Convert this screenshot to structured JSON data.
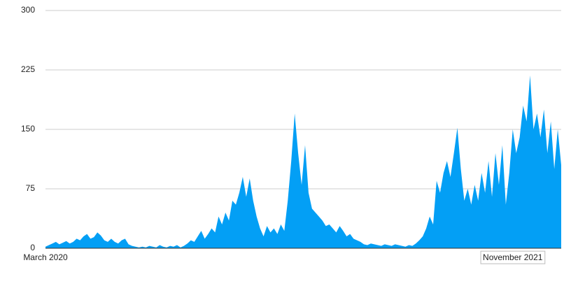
{
  "chart_data": {
    "type": "area",
    "color": "#039ff5",
    "grid": true,
    "ylim": [
      0,
      300
    ],
    "yticks": [
      0,
      75,
      150,
      225,
      300
    ],
    "categories": [
      "March 2020",
      null,
      null,
      null,
      null,
      null,
      null,
      null,
      null,
      null,
      null,
      null,
      null,
      null,
      null,
      null,
      null,
      null,
      null,
      null,
      null,
      null,
      null,
      null,
      null,
      null,
      null,
      null,
      null,
      null,
      null,
      null,
      null,
      null,
      null,
      null,
      null,
      null,
      null,
      null,
      null,
      null,
      null,
      null,
      null,
      null,
      null,
      null,
      null,
      null,
      null,
      null,
      null,
      null,
      null,
      null,
      null,
      null,
      null,
      null,
      null,
      null,
      null,
      null,
      null,
      null,
      null,
      null,
      null,
      null,
      null,
      null,
      null,
      null,
      null,
      null,
      null,
      null,
      null,
      null,
      null,
      null,
      null,
      null,
      null,
      null,
      null,
      null,
      null,
      null,
      null,
      null,
      null,
      null,
      null,
      null,
      null,
      null,
      null,
      null,
      null,
      null,
      null,
      null,
      null,
      null,
      null,
      null,
      null,
      null,
      null,
      null,
      null,
      null,
      null,
      null,
      null,
      null,
      null,
      null,
      null,
      null,
      null,
      null,
      null,
      null,
      null,
      null,
      null,
      null,
      null,
      null,
      null,
      null,
      null,
      "November 2021",
      null,
      null,
      null,
      null,
      null,
      null,
      null,
      null,
      null,
      null,
      null,
      null,
      null,
      null
    ],
    "values": [
      2,
      4,
      6,
      8,
      5,
      7,
      9,
      6,
      8,
      12,
      10,
      15,
      18,
      12,
      14,
      20,
      16,
      10,
      8,
      12,
      8,
      6,
      10,
      12,
      5,
      3,
      2,
      1,
      2,
      1,
      3,
      2,
      1,
      4,
      2,
      1,
      3,
      2,
      4,
      1,
      3,
      6,
      10,
      8,
      15,
      22,
      12,
      18,
      25,
      20,
      40,
      30,
      45,
      35,
      60,
      55,
      70,
      90,
      65,
      88,
      60,
      40,
      25,
      15,
      28,
      20,
      25,
      18,
      30,
      22,
      60,
      110,
      170,
      120,
      80,
      130,
      70,
      50,
      45,
      40,
      35,
      28,
      30,
      25,
      20,
      28,
      22,
      15,
      18,
      12,
      10,
      8,
      5,
      4,
      6,
      5,
      4,
      3,
      5,
      4,
      3,
      5,
      4,
      3,
      2,
      4,
      3,
      6,
      10,
      15,
      25,
      40,
      30,
      85,
      70,
      95,
      110,
      90,
      120,
      152,
      100,
      60,
      75,
      55,
      80,
      60,
      95,
      70,
      110,
      65,
      120,
      80,
      130,
      55,
      95,
      150,
      120,
      140,
      180,
      160,
      218,
      150,
      170,
      140,
      175,
      120,
      160,
      100,
      150,
      105
    ]
  }
}
